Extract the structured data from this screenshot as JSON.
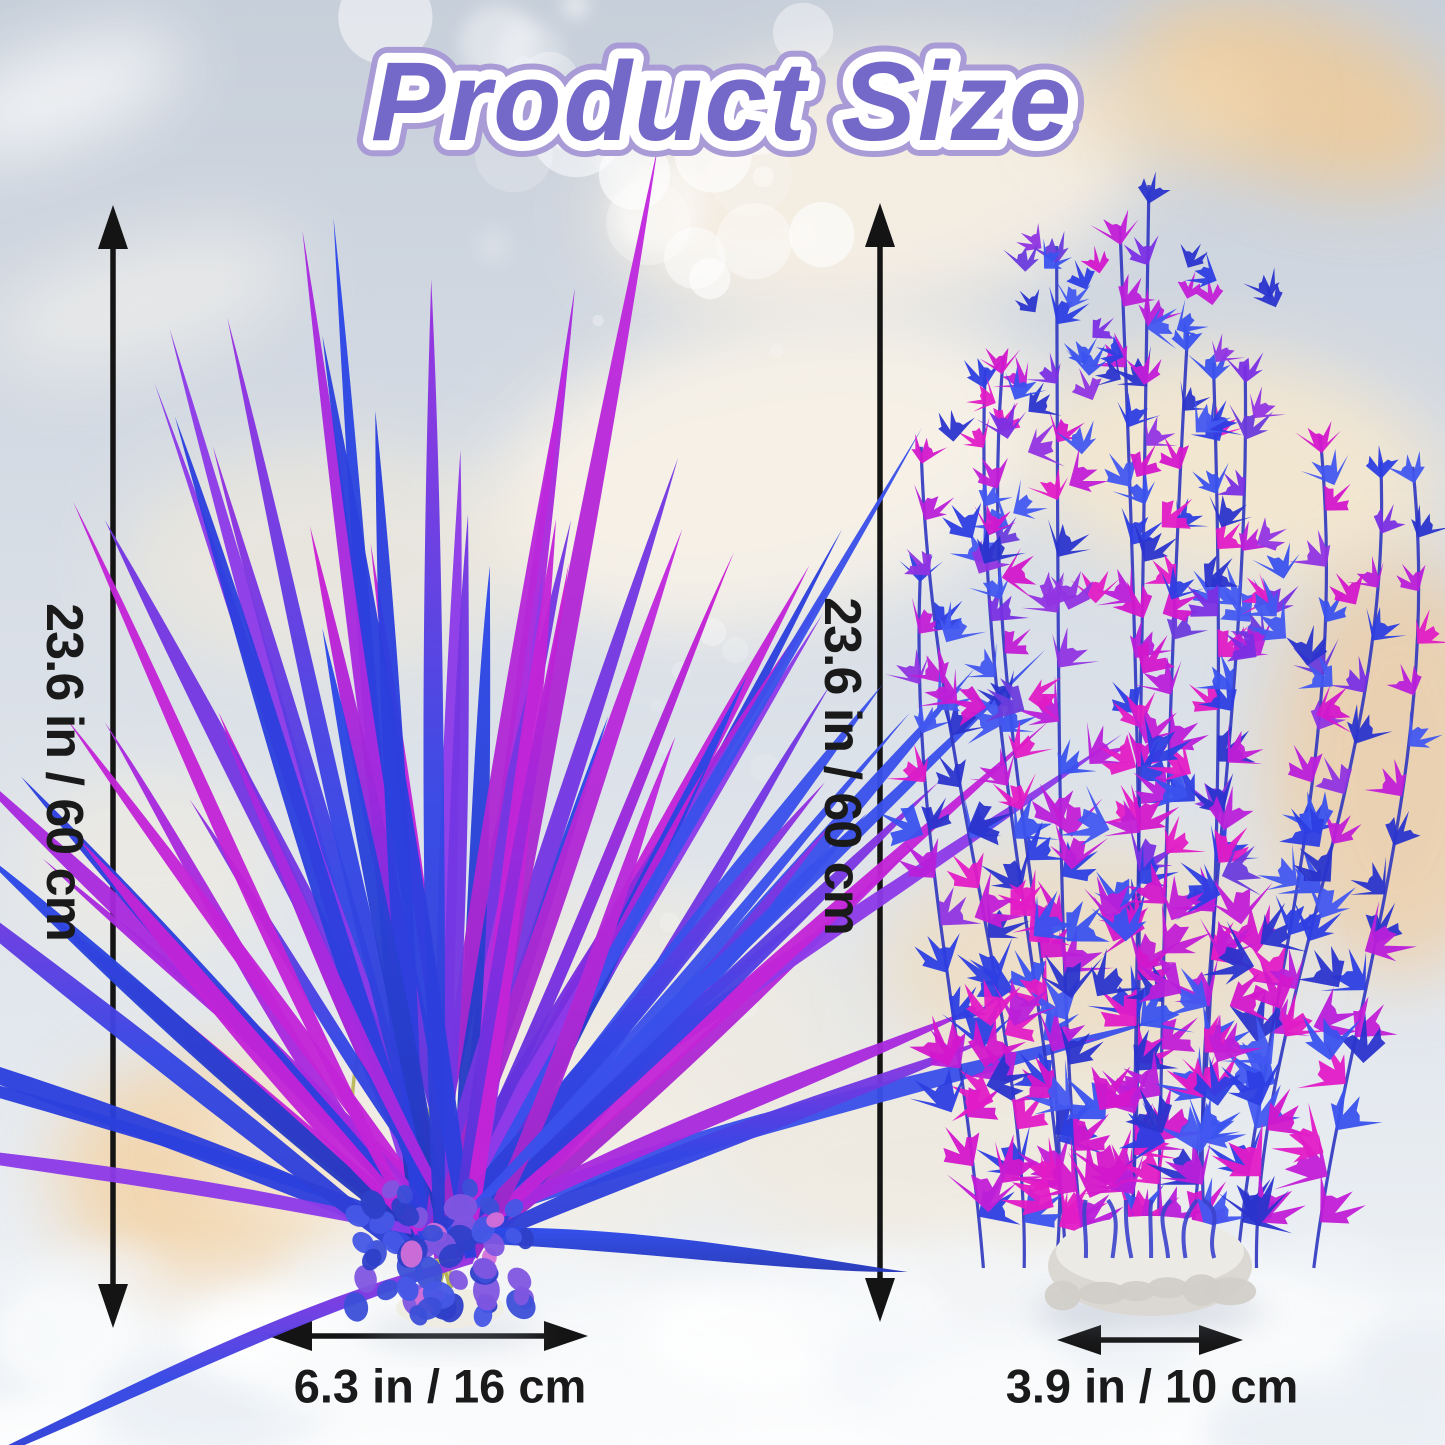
{
  "title": "Product Size",
  "left_plant": {
    "height_label": "23.6 in / 60 cm",
    "width_label": "6.3 in / 16 cm"
  },
  "right_plant": {
    "height_label": "23.6 in / 60 cm",
    "width_label": "3.9 in / 10 cm"
  },
  "icons": {
    "left_height_arrow": "double-headed-vertical-arrow",
    "right_height_arrow": "double-headed-vertical-arrow",
    "left_width_arrow": "double-headed-horizontal-arrow",
    "right_width_arrow": "double-headed-horizontal-arrow"
  },
  "colors": {
    "title_fill": "#7468c8",
    "title_inner_stroke": "#ffffff",
    "title_outer_stroke": "#a99bd6",
    "label_color": "#1a1a1a",
    "arrow_color": "#141414",
    "bg_top": "#c7cfda",
    "bg_mid": "#d8dee6",
    "bg_bottom": "#f2f5f8",
    "fish_orange": "#f3c98f",
    "fish_cream": "#f8f0e3",
    "plant_blue": "#2e42e0",
    "plant_violet": "#7a2fe3",
    "plant_magenta": "#c922d4",
    "plant_pink": "#d36fd8",
    "stem_yellow": "#b5b552",
    "stem_blue": "#2f36c0",
    "stone_base": "#dbd8d3",
    "white_base": "#efece2"
  }
}
